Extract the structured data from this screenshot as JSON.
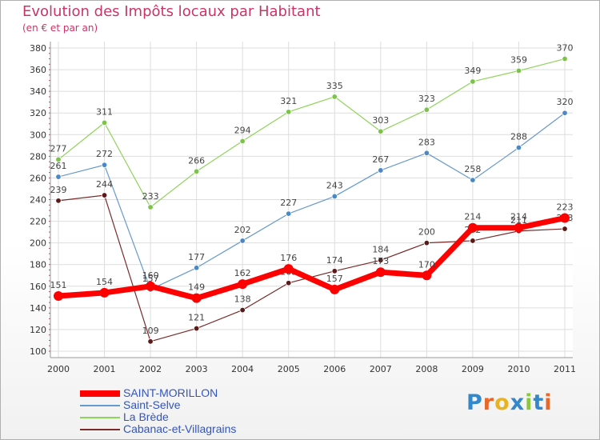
{
  "chart_data": {
    "type": "line",
    "title": "Evolution des Impôts locaux par Habitant",
    "subtitle": "(en € et par an)",
    "xlabel": "",
    "ylabel": "",
    "ylim": [
      100,
      380
    ],
    "y_ticks": [
      100,
      120,
      140,
      160,
      180,
      200,
      220,
      240,
      260,
      280,
      300,
      320,
      340,
      360,
      380
    ],
    "categories": [
      "2000",
      "2001",
      "2002",
      "2003",
      "2004",
      "2005",
      "2006",
      "2007",
      "2008",
      "2009",
      "2010",
      "2011"
    ],
    "grid": true,
    "legend_position": "bottom-left",
    "series": [
      {
        "name": "Saint-Selve",
        "color": "#6699cc",
        "marker": "#4a88c6",
        "values": [
          261,
          272,
          157,
          177,
          202,
          227,
          243,
          267,
          283,
          258,
          288,
          320
        ]
      },
      {
        "name": "La Brède",
        "color": "#8ed35a",
        "marker": "#7cc34a",
        "values": [
          277,
          311,
          233,
          266,
          294,
          321,
          335,
          303,
          323,
          349,
          359,
          370
        ]
      },
      {
        "name": "Cabanac-et-Villagrains",
        "color": "#7a2b2b",
        "marker": "#5a1a1a",
        "values": [
          239,
          244,
          109,
          121,
          138,
          163,
          174,
          184,
          200,
          202,
          211,
          213
        ]
      },
      {
        "name": "SAINT-MORILLON",
        "color": "#ff0000",
        "marker": "#ff0000",
        "values": [
          151,
          154,
          160,
          149,
          162,
          176,
          157,
          173,
          170,
          214,
          214,
          223
        ]
      }
    ],
    "legend_order": [
      "SAINT-MORILLON",
      "Saint-Selve",
      "La Brède",
      "Cabanac-et-Villagrains"
    ]
  },
  "logo": {
    "text": "Proxiti",
    "colors": [
      "#3388cc",
      "#e8672a",
      "#e8b323",
      "#3388cc",
      "#8cc63f",
      "#3388cc",
      "#e8672a"
    ]
  }
}
